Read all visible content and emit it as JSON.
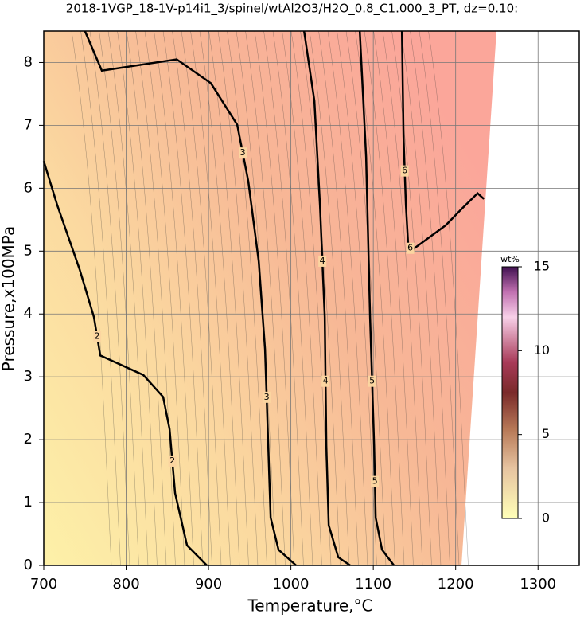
{
  "chart_data": {
    "type": "contour",
    "title": "2018-1VGP_18-1V-p14i1_3/spinel/wtAl2O3/H2O_0.8_C1.000_3_PT, dz=0.10:",
    "x_label": "Temperature,°C",
    "y_label": "Pressure,x100MPa",
    "xlim": [
      700,
      1350
    ],
    "ylim": [
      0,
      8.5
    ],
    "xticks": [
      700,
      800,
      900,
      1000,
      1100,
      1200,
      1300
    ],
    "yticks": [
      0,
      1,
      2,
      3,
      4,
      5,
      6,
      7,
      8
    ],
    "grid": true,
    "contours": [
      {
        "level": 2,
        "x": [
          700,
          716.4,
          743.5,
          760.9,
          768.6,
          820.8,
          844.9,
          852.7,
          859.4,
          873.9,
          898
        ],
        "y": [
          6.43,
          5.73,
          4.71,
          3.95,
          3.34,
          3.03,
          2.68,
          2.17,
          1.15,
          0.32,
          0
        ]
      },
      {
        "level": 3,
        "x": [
          750,
          770.5,
          861.4,
          902.9,
          934.8,
          948.3,
          960.9,
          968.6,
          972.5,
          975.4,
          985,
          1006.3
        ],
        "y": [
          8.5,
          7.87,
          8.05,
          7.67,
          7.01,
          6.11,
          4.84,
          3.44,
          1.91,
          0.76,
          0.25,
          0
        ]
      },
      {
        "level": 4,
        "x": [
          1016,
          1028.5,
          1035.3,
          1041.1,
          1043,
          1045.9,
          1057.5,
          1072
        ],
        "y": [
          8.5,
          7.39,
          5.73,
          3.95,
          1.91,
          0.64,
          0.13,
          0
        ]
      },
      {
        "level": 5,
        "x": [
          1083.6,
          1091.3,
          1096.1,
          1101,
          1102.9,
          1110.6,
          1125.1
        ],
        "y": [
          8.5,
          6.5,
          3.95,
          1.91,
          0.76,
          0.25,
          0
        ]
      },
      {
        "level": 6,
        "x": [
          1134.8,
          1136.7,
          1139.6,
          1142.5,
          1147.3,
          1187.9,
          1207.2,
          1226.6,
          1234.3
        ],
        "y": [
          8.5,
          6.82,
          5.73,
          5.07,
          5.02,
          5.41,
          5.67,
          5.92,
          5.83
        ]
      }
    ],
    "colorbar": {
      "label": "wt%",
      "lim": [
        0,
        15
      ],
      "ticks": [
        0,
        5,
        10,
        15
      ]
    }
  }
}
